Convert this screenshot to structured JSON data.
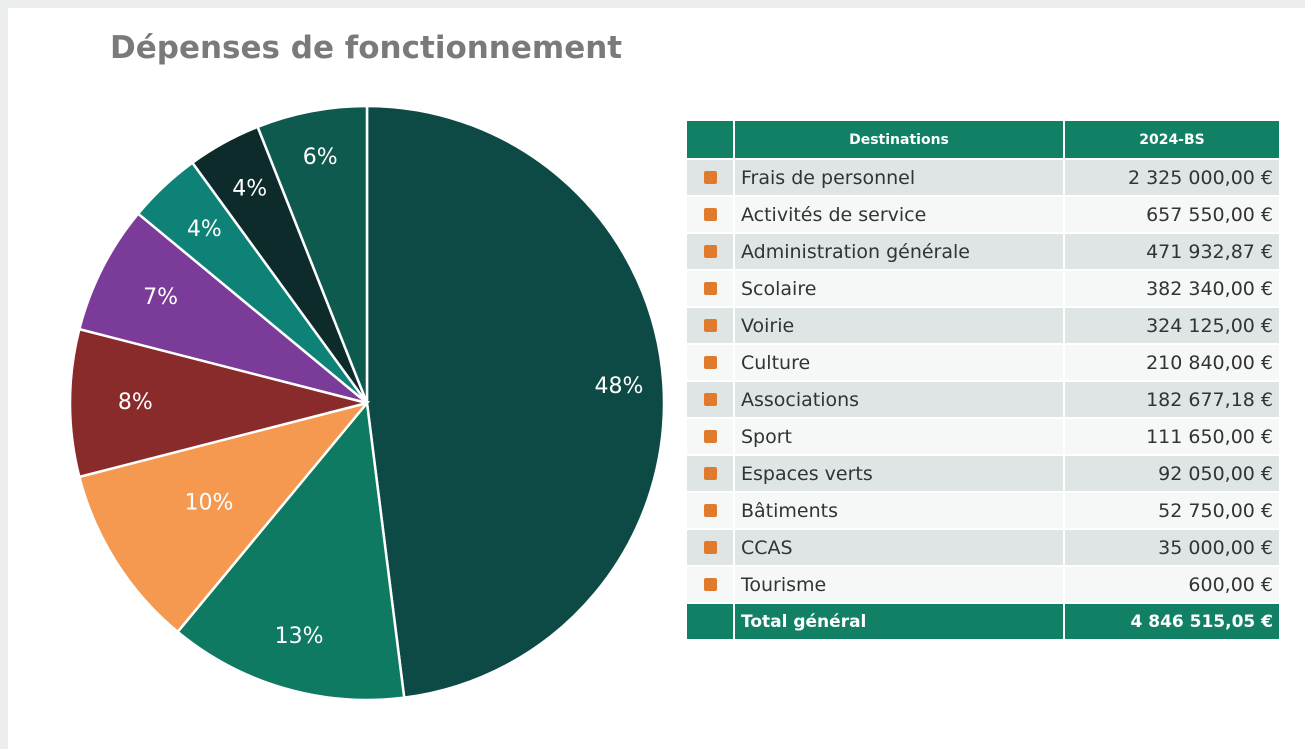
{
  "chart_data": {
    "type": "pie",
    "title": "Dépenses de fonctionnement",
    "series": [
      {
        "values": [
          48,
          13,
          10,
          8,
          7,
          4,
          4,
          6
        ],
        "value_labels": [
          "48%",
          "13%",
          "10%",
          "8%",
          "7%",
          "4%",
          "4%",
          "6%"
        ],
        "colors": [
          "#0d4a45",
          "#0f7a62",
          "#f4994f",
          "#8a2b2b",
          "#7b3b98",
          "#0f8278",
          "#0d2b2a",
          "#0f5a4e"
        ]
      }
    ]
  },
  "table": {
    "header": [
      "Destinations",
      "2024-BS"
    ],
    "rows": [
      [
        "Frais de personnel",
        "2 325 000,00 €"
      ],
      [
        "Activités de service",
        "657 550,00 €"
      ],
      [
        "Administration générale",
        "471 932,87 €"
      ],
      [
        "Scolaire",
        "382 340,00 €"
      ],
      [
        "Voirie",
        "324 125,00 €"
      ],
      [
        "Culture",
        "210 840,00 €"
      ],
      [
        "Associations",
        "182 677,18 €"
      ],
      [
        "Sport",
        "111 650,00 €"
      ],
      [
        "Espaces verts",
        "92 050,00 €"
      ],
      [
        "Bâtiments",
        "52 750,00 €"
      ],
      [
        "CCAS",
        "35 000,00 €"
      ],
      [
        "Tourisme",
        "600,00 €"
      ]
    ],
    "total": [
      "Total général",
      "4 846 515,05 €"
    ]
  }
}
